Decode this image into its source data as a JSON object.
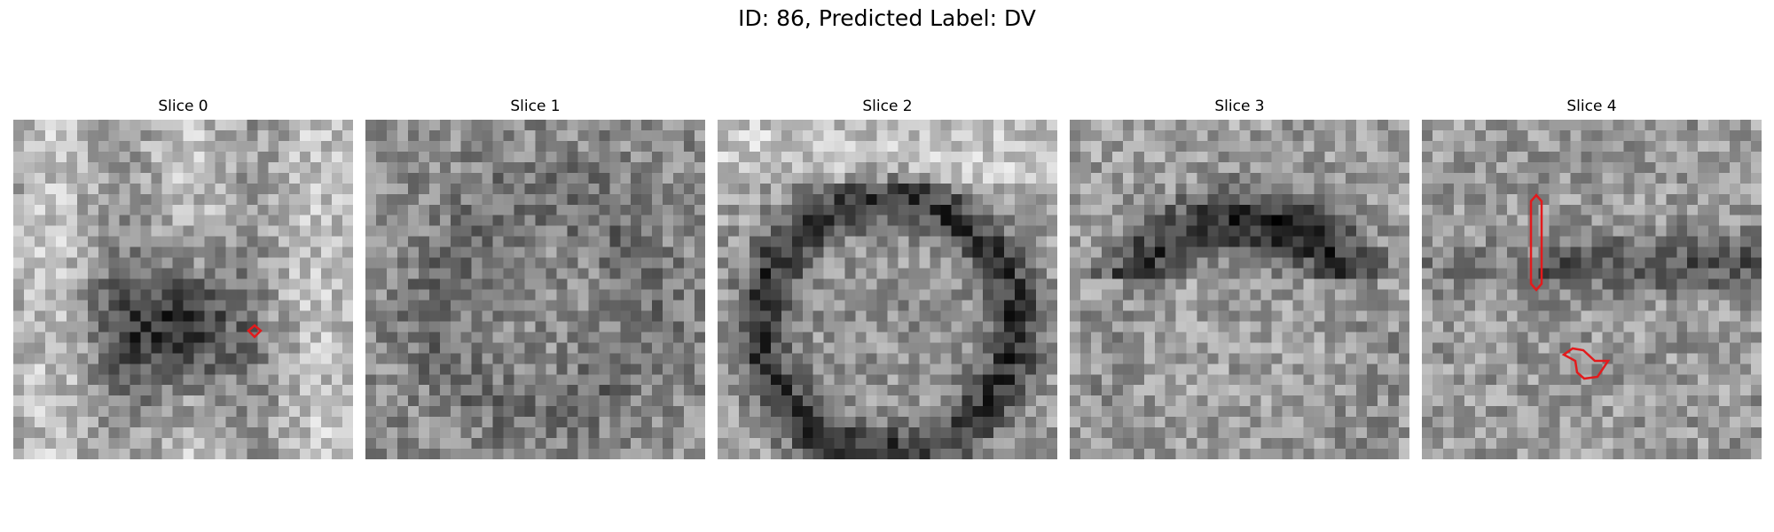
{
  "figure": {
    "title": "ID: 86, Predicted Label: DV"
  },
  "panels": [
    {
      "title": "Slice 0",
      "pattern": "dark-blob",
      "overlay_color": "#e31a1c"
    },
    {
      "title": "Slice 1",
      "pattern": "faint-ring",
      "overlay_color": "#e31a1c"
    },
    {
      "title": "Slice 2",
      "pattern": "dark-ring",
      "overlay_color": "#e31a1c"
    },
    {
      "title": "Slice 3",
      "pattern": "arc-top",
      "overlay_color": "#e31a1c"
    },
    {
      "title": "Slice 4",
      "pattern": "noise-band",
      "overlay_color": "#e31a1c"
    }
  ]
}
